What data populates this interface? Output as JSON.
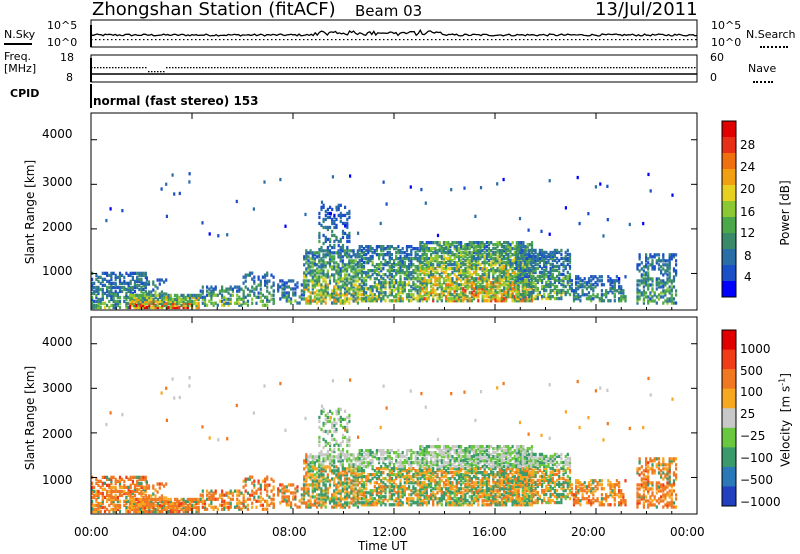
{
  "header": {
    "station": "Zhongshan Station (fitACF)",
    "beam": "Beam 03",
    "date": "13/Jul/2011"
  },
  "sky_panel": {
    "left_label": "N.Sky",
    "right_label": "N.Search",
    "left_ticks": [
      "10^5",
      "10^0"
    ],
    "right_ticks": [
      "10^5",
      "10^0"
    ]
  },
  "freq_panel": {
    "left_label_1": "Freq.",
    "left_label_2": "[MHz]",
    "right_label": "Nave",
    "left_ticks": [
      "18",
      "8"
    ],
    "right_ticks": [
      "60",
      "0"
    ]
  },
  "cpid": {
    "label": "CPID",
    "value": "normal (fast stereo) 153"
  },
  "chart_data": [
    {
      "type": "heatmap",
      "quantity": "Power",
      "ylabel": "Slant Range [km]",
      "xlabel": "",
      "y_ticks": [
        "4000",
        "3000",
        "2000",
        "1000"
      ],
      "y_tick_values": [
        4000,
        3000,
        2000,
        1000
      ],
      "ylim": [
        180,
        4600
      ],
      "x_ticks": [
        "00:00",
        "04:00",
        "08:00",
        "12:00",
        "16:00",
        "20:00",
        "00:00"
      ],
      "xlim_hours": [
        0,
        24
      ],
      "colorbar": {
        "label": "Power [dB]",
        "ticks": [
          "28",
          "24",
          "20",
          "16",
          "12",
          "8",
          "4"
        ],
        "values": [
          28,
          24,
          20,
          16,
          12,
          8,
          4
        ],
        "range": [
          0,
          32
        ],
        "colors": [
          "#0000ff",
          "#1a4fc8",
          "#2a6ea8",
          "#3a8a6a",
          "#4aa84a",
          "#8cc832",
          "#e8d020",
          "#f0a010",
          "#f07010",
          "#e83018",
          "#e00000"
        ]
      }
    },
    {
      "type": "heatmap",
      "quantity": "Velocity",
      "ylabel": "Slant Range [km]",
      "xlabel": "Time UT",
      "y_ticks": [
        "4000",
        "3000",
        "2000",
        "1000"
      ],
      "y_tick_values": [
        4000,
        3000,
        2000,
        1000
      ],
      "ylim": [
        180,
        4600
      ],
      "x_ticks": [
        "00:00",
        "04:00",
        "08:00",
        "12:00",
        "16:00",
        "20:00",
        "00:00"
      ],
      "xlim_hours": [
        0,
        24
      ],
      "colorbar": {
        "label": "Velocity",
        "label_unit": "[m s",
        "label_exp": "-1",
        "label_close": "]",
        "ticks": [
          "1000",
          "500",
          "100",
          "25",
          "−25",
          "−100",
          "−500",
          "−1000"
        ],
        "colors": [
          "#2040c0",
          "#2a78b8",
          "#3a9a6a",
          "#6ac840",
          "#c8c8c8",
          "#f8a820",
          "#f07820",
          "#f03c18",
          "#e00000"
        ]
      }
    }
  ]
}
